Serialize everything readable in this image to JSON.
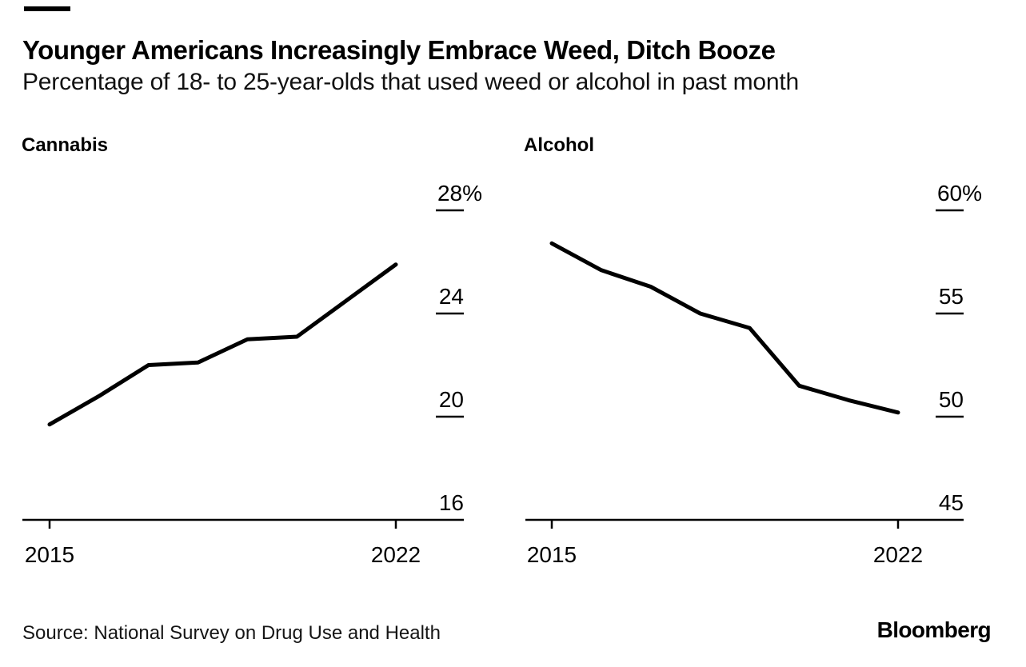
{
  "page": {
    "title": "Younger Americans Increasingly Embrace Weed, Ditch Booze",
    "subtitle": "Percentage of 18- to 25-year-olds that used weed or alcohol in past month",
    "source": "Source: National Survey on Drug Use and Health",
    "brand": "Bloomberg",
    "background_color": "#ffffff",
    "text_color": "#000000"
  },
  "chart_data": [
    {
      "type": "line",
      "title": "Cannabis",
      "x": [
        2015,
        2016,
        2017,
        2018,
        2019,
        2020,
        2021,
        2022
      ],
      "values": [
        19.7,
        20.8,
        22.0,
        22.1,
        23.0,
        23.1,
        24.5,
        25.9
      ],
      "ylabel": "",
      "xlabel": "",
      "unit": "%",
      "ylim": [
        16,
        28
      ],
      "yticks": [
        16,
        20,
        24,
        28
      ],
      "ytick_labels": [
        "16",
        "20",
        "24",
        "28%"
      ],
      "xticks": [
        2015,
        2022
      ],
      "xtick_labels": [
        "2015",
        "2022"
      ],
      "legend": "none",
      "grid": "right-edge tick dashes only",
      "line_color": "#000000"
    },
    {
      "type": "line",
      "title": "Alcohol",
      "x": [
        2015,
        2016,
        2017,
        2018,
        2019,
        2020,
        2021,
        2022
      ],
      "values": [
        58.4,
        57.1,
        56.3,
        55.0,
        54.3,
        51.5,
        50.8,
        50.2
      ],
      "ylabel": "",
      "xlabel": "",
      "unit": "%",
      "ylim": [
        45,
        60
      ],
      "yticks": [
        45,
        50,
        55,
        60
      ],
      "ytick_labels": [
        "45",
        "50",
        "55",
        "60%"
      ],
      "xticks": [
        2015,
        2022
      ],
      "xtick_labels": [
        "2015",
        "2022"
      ],
      "legend": "none",
      "grid": "right-edge tick dashes only",
      "line_color": "#000000"
    }
  ]
}
